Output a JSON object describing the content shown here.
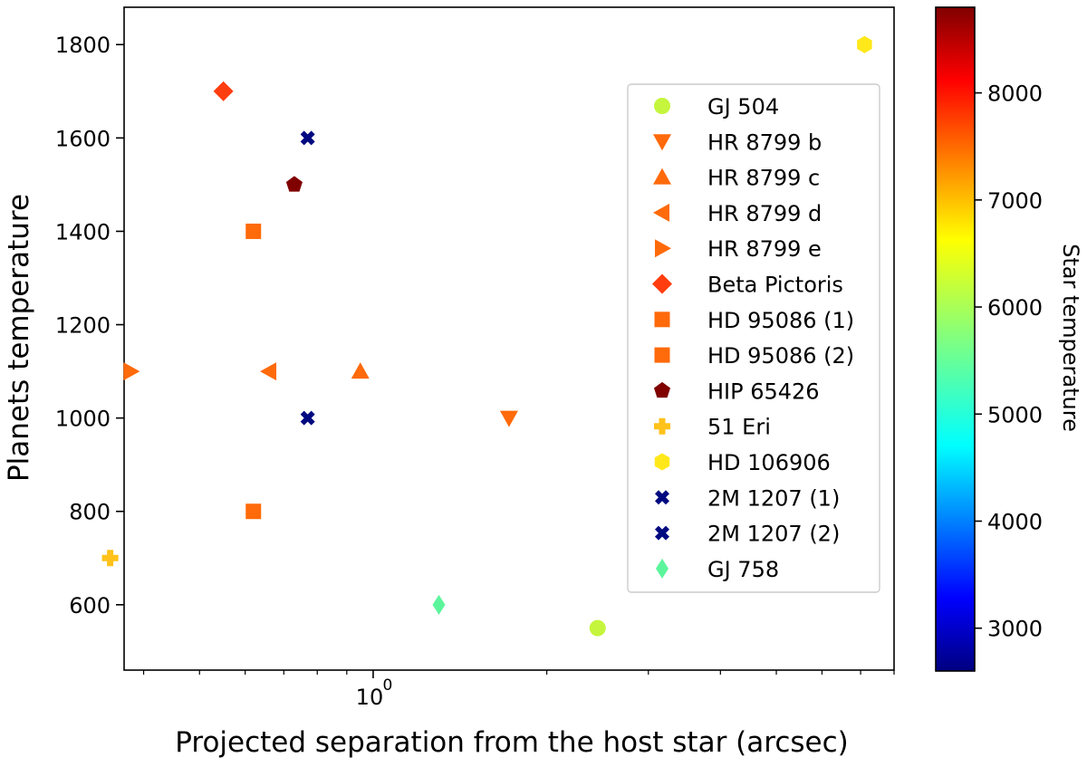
{
  "chart_data": {
    "type": "scatter",
    "xscale": "log",
    "xlabel": "Projected separation from the host star (arcsec)",
    "ylabel": "Planets temperature",
    "xlim": [
      0.37,
      8.0
    ],
    "ylim": [
      460,
      1880
    ],
    "xticks": [
      {
        "value": 1,
        "label": "10",
        "exp": "0"
      }
    ],
    "yticks": [
      600,
      800,
      1000,
      1200,
      1400,
      1600,
      1800
    ],
    "grid": false,
    "legend_position": "upper-right",
    "colorbar": {
      "label": "Star temperature",
      "range": [
        2600,
        8800
      ],
      "ticks": [
        3000,
        4000,
        5000,
        6000,
        7000,
        8000
      ],
      "colormap": "jet"
    },
    "series": [
      {
        "name": "GJ 504",
        "marker": "circle",
        "color": "#c5f53c",
        "x": 2.45,
        "y": 550
      },
      {
        "name": "HR 8799 b",
        "marker": "triangle-down",
        "color": "#ff6a0a",
        "x": 1.72,
        "y": 1000
      },
      {
        "name": "HR 8799 c",
        "marker": "triangle-up",
        "color": "#ff6a0a",
        "x": 0.95,
        "y": 1100
      },
      {
        "name": "HR 8799 d",
        "marker": "triangle-left",
        "color": "#ff6a0a",
        "x": 0.66,
        "y": 1100
      },
      {
        "name": "HR 8799 e",
        "marker": "triangle-right",
        "color": "#ff6a0a",
        "x": 0.38,
        "y": 1100
      },
      {
        "name": "Beta Pictoris",
        "marker": "diamond",
        "color": "#ff3d0e",
        "x": 0.55,
        "y": 1700
      },
      {
        "name": "HD 95086 (1)",
        "marker": "square",
        "color": "#ff6a0a",
        "x": 0.62,
        "y": 1400
      },
      {
        "name": "HD 95086 (2)",
        "marker": "square",
        "color": "#ff6a0a",
        "x": 0.62,
        "y": 800
      },
      {
        "name": "HIP 65426",
        "marker": "pentagon",
        "color": "#800000",
        "x": 0.73,
        "y": 1500
      },
      {
        "name": "51 Eri",
        "marker": "plus",
        "color": "#ffc21a",
        "x": 0.35,
        "y": 700
      },
      {
        "name": "HD 106906",
        "marker": "hexagon",
        "color": "#ffe81a",
        "x": 7.11,
        "y": 1800
      },
      {
        "name": "2M 1207 (1)",
        "marker": "x",
        "color": "#000a80",
        "x": 0.77,
        "y": 1600
      },
      {
        "name": "2M 1207 (2)",
        "marker": "x",
        "color": "#000a80",
        "x": 0.77,
        "y": 1000
      },
      {
        "name": "GJ 758",
        "marker": "thin-diamond",
        "color": "#5cf59c",
        "x": 1.3,
        "y": 600
      }
    ]
  }
}
